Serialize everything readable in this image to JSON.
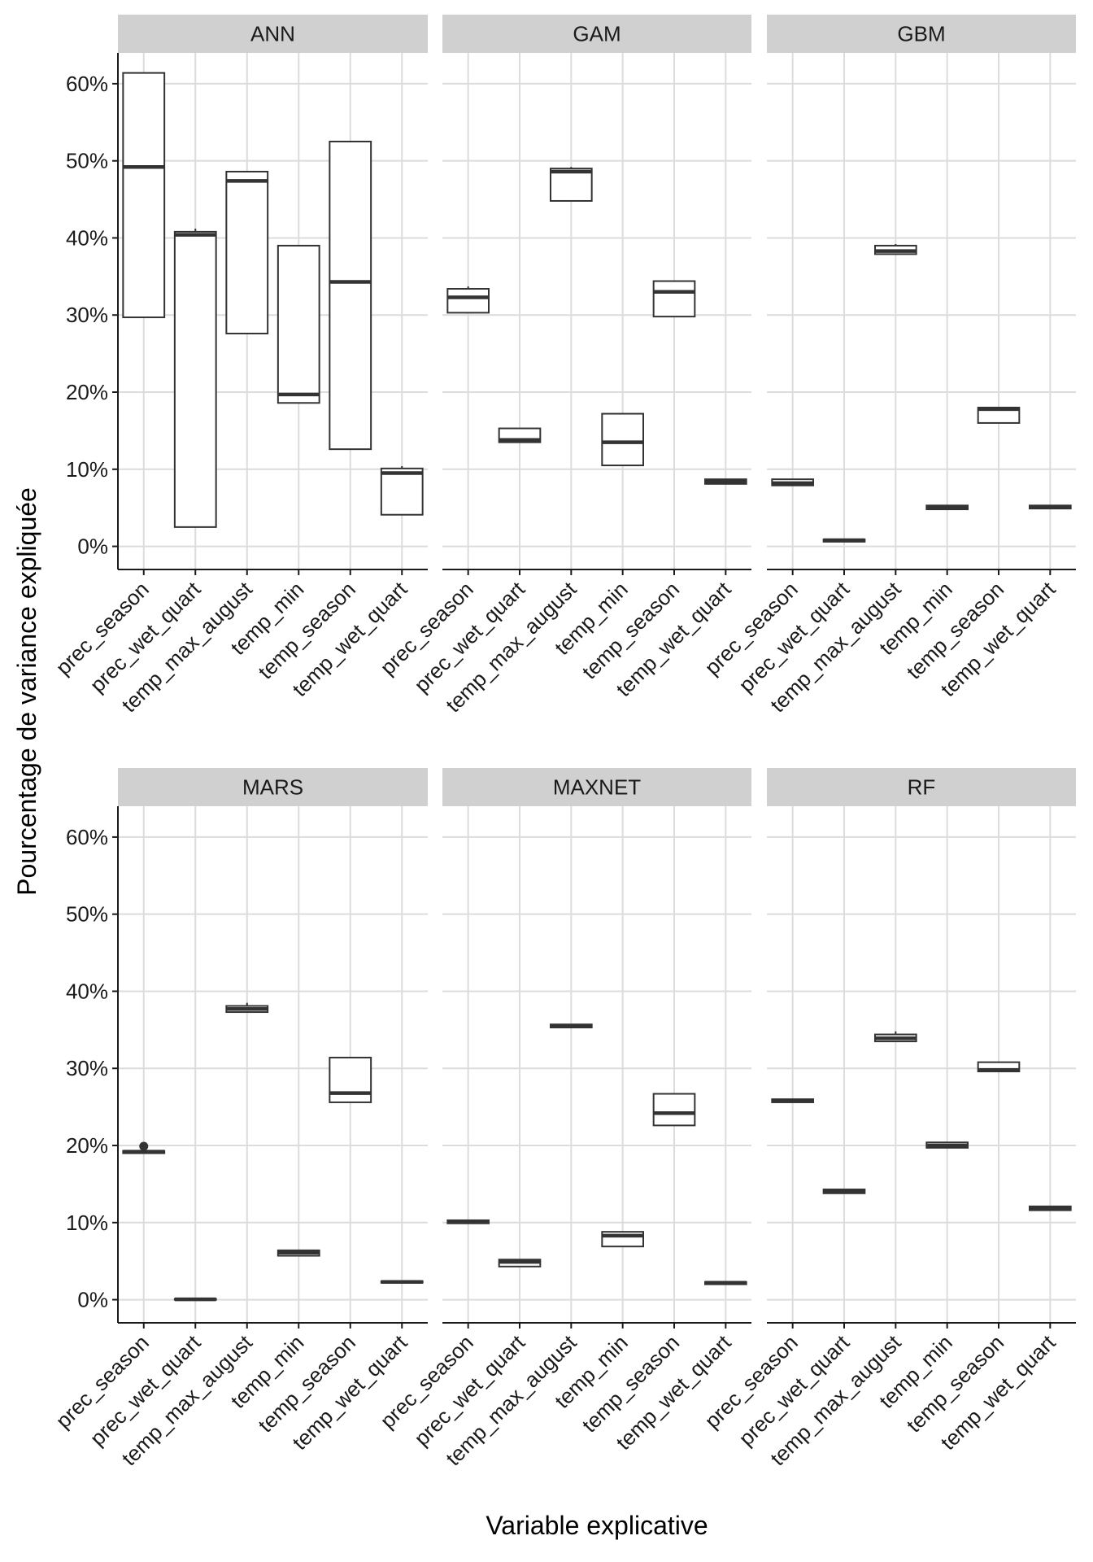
{
  "chart_data": {
    "type": "boxplot",
    "xlabel": "Variable explicative",
    "ylabel": "Pourcentage de variance expliquée",
    "ylim": [
      -3,
      64
    ],
    "yticks": [
      0,
      10,
      20,
      30,
      40,
      50,
      60
    ],
    "ytick_labels": [
      "0%",
      "10%",
      "20%",
      "30%",
      "40%",
      "50%",
      "60%"
    ],
    "categories": [
      "prec_season",
      "prec_wet_quart",
      "temp_max_august",
      "temp_min",
      "temp_season",
      "temp_wet_quart"
    ],
    "grid": true,
    "facets": [
      {
        "name": "ANN",
        "boxes": [
          {
            "min": 29.7,
            "q1": 29.7,
            "median": 49.2,
            "q3": 61.4,
            "max": 61.4
          },
          {
            "min": 2.5,
            "q1": 2.5,
            "median": 40.4,
            "q3": 40.8,
            "max": 41.2
          },
          {
            "min": 27.6,
            "q1": 27.6,
            "median": 47.4,
            "q3": 48.6,
            "max": 48.6
          },
          {
            "min": 18.6,
            "q1": 18.6,
            "median": 19.7,
            "q3": 39.0,
            "max": 39.0
          },
          {
            "min": 12.6,
            "q1": 12.6,
            "median": 34.3,
            "q3": 52.5,
            "max": 52.5
          },
          {
            "min": 4.1,
            "q1": 4.1,
            "median": 9.5,
            "q3": 10.1,
            "max": 10.4
          }
        ]
      },
      {
        "name": "GAM",
        "boxes": [
          {
            "min": 30.3,
            "q1": 30.3,
            "median": 32.3,
            "q3": 33.4,
            "max": 33.7
          },
          {
            "min": 13.5,
            "q1": 13.5,
            "median": 13.8,
            "q3": 15.3,
            "max": 15.3
          },
          {
            "min": 44.8,
            "q1": 44.8,
            "median": 48.6,
            "q3": 49.0,
            "max": 49.2
          },
          {
            "min": 10.5,
            "q1": 10.5,
            "median": 13.5,
            "q3": 17.2,
            "max": 17.2
          },
          {
            "min": 29.8,
            "q1": 29.8,
            "median": 33.0,
            "q3": 34.4,
            "max": 34.4
          },
          {
            "min": 8.1,
            "q1": 8.1,
            "median": 8.4,
            "q3": 8.7,
            "max": 8.7
          }
        ]
      },
      {
        "name": "GBM",
        "boxes": [
          {
            "min": 7.9,
            "q1": 7.9,
            "median": 8.2,
            "q3": 8.7,
            "max": 8.7
          },
          {
            "min": 0.6,
            "q1": 0.6,
            "median": 0.8,
            "q3": 0.9,
            "max": 0.9
          },
          {
            "min": 37.9,
            "q1": 37.9,
            "median": 38.3,
            "q3": 39.0,
            "max": 39.2
          },
          {
            "min": 4.8,
            "q1": 4.8,
            "median": 5.0,
            "q3": 5.3,
            "max": 5.3
          },
          {
            "min": 16.0,
            "q1": 16.0,
            "median": 17.8,
            "q3": 18.0,
            "max": 18.0
          },
          {
            "min": 4.9,
            "q1": 4.9,
            "median": 5.1,
            "q3": 5.3,
            "max": 5.3
          }
        ]
      },
      {
        "name": "MARS",
        "boxes": [
          {
            "min": 19.0,
            "q1": 19.0,
            "median": 19.2,
            "q3": 19.3,
            "max": 19.3,
            "outliers": [
              19.9
            ]
          },
          {
            "min": 0.0,
            "q1": 0.0,
            "median": 0.05,
            "q3": 0.1,
            "max": 0.1
          },
          {
            "min": 37.3,
            "q1": 37.3,
            "median": 37.7,
            "q3": 38.1,
            "max": 38.5
          },
          {
            "min": 5.7,
            "q1": 5.7,
            "median": 6.1,
            "q3": 6.4,
            "max": 6.5
          },
          {
            "min": 25.6,
            "q1": 25.6,
            "median": 26.8,
            "q3": 31.4,
            "max": 31.4
          },
          {
            "min": 2.2,
            "q1": 2.2,
            "median": 2.3,
            "q3": 2.4,
            "max": 2.4
          }
        ]
      },
      {
        "name": "MAXNET",
        "boxes": [
          {
            "min": 9.9,
            "q1": 9.9,
            "median": 10.1,
            "q3": 10.3,
            "max": 10.3
          },
          {
            "min": 4.3,
            "q1": 4.3,
            "median": 4.9,
            "q3": 5.2,
            "max": 5.2
          },
          {
            "min": 35.3,
            "q1": 35.3,
            "median": 35.5,
            "q3": 35.7,
            "max": 35.7
          },
          {
            "min": 6.9,
            "q1": 6.9,
            "median": 8.3,
            "q3": 8.8,
            "max": 8.8
          },
          {
            "min": 22.6,
            "q1": 22.6,
            "median": 24.2,
            "q3": 26.7,
            "max": 26.7
          },
          {
            "min": 2.0,
            "q1": 2.0,
            "median": 2.2,
            "q3": 2.3,
            "max": 2.3
          }
        ]
      },
      {
        "name": "RF",
        "boxes": [
          {
            "min": 25.6,
            "q1": 25.6,
            "median": 25.8,
            "q3": 26.0,
            "max": 26.0
          },
          {
            "min": 13.8,
            "q1": 13.8,
            "median": 14.0,
            "q3": 14.3,
            "max": 14.3
          },
          {
            "min": 33.5,
            "q1": 33.5,
            "median": 33.9,
            "q3": 34.4,
            "max": 34.8
          },
          {
            "min": 19.7,
            "q1": 19.7,
            "median": 20.0,
            "q3": 20.4,
            "max": 20.4
          },
          {
            "min": 29.6,
            "q1": 29.6,
            "median": 29.8,
            "q3": 30.8,
            "max": 30.8
          },
          {
            "min": 11.6,
            "q1": 11.6,
            "median": 11.9,
            "q3": 12.1,
            "max": 12.1
          }
        ]
      }
    ]
  }
}
